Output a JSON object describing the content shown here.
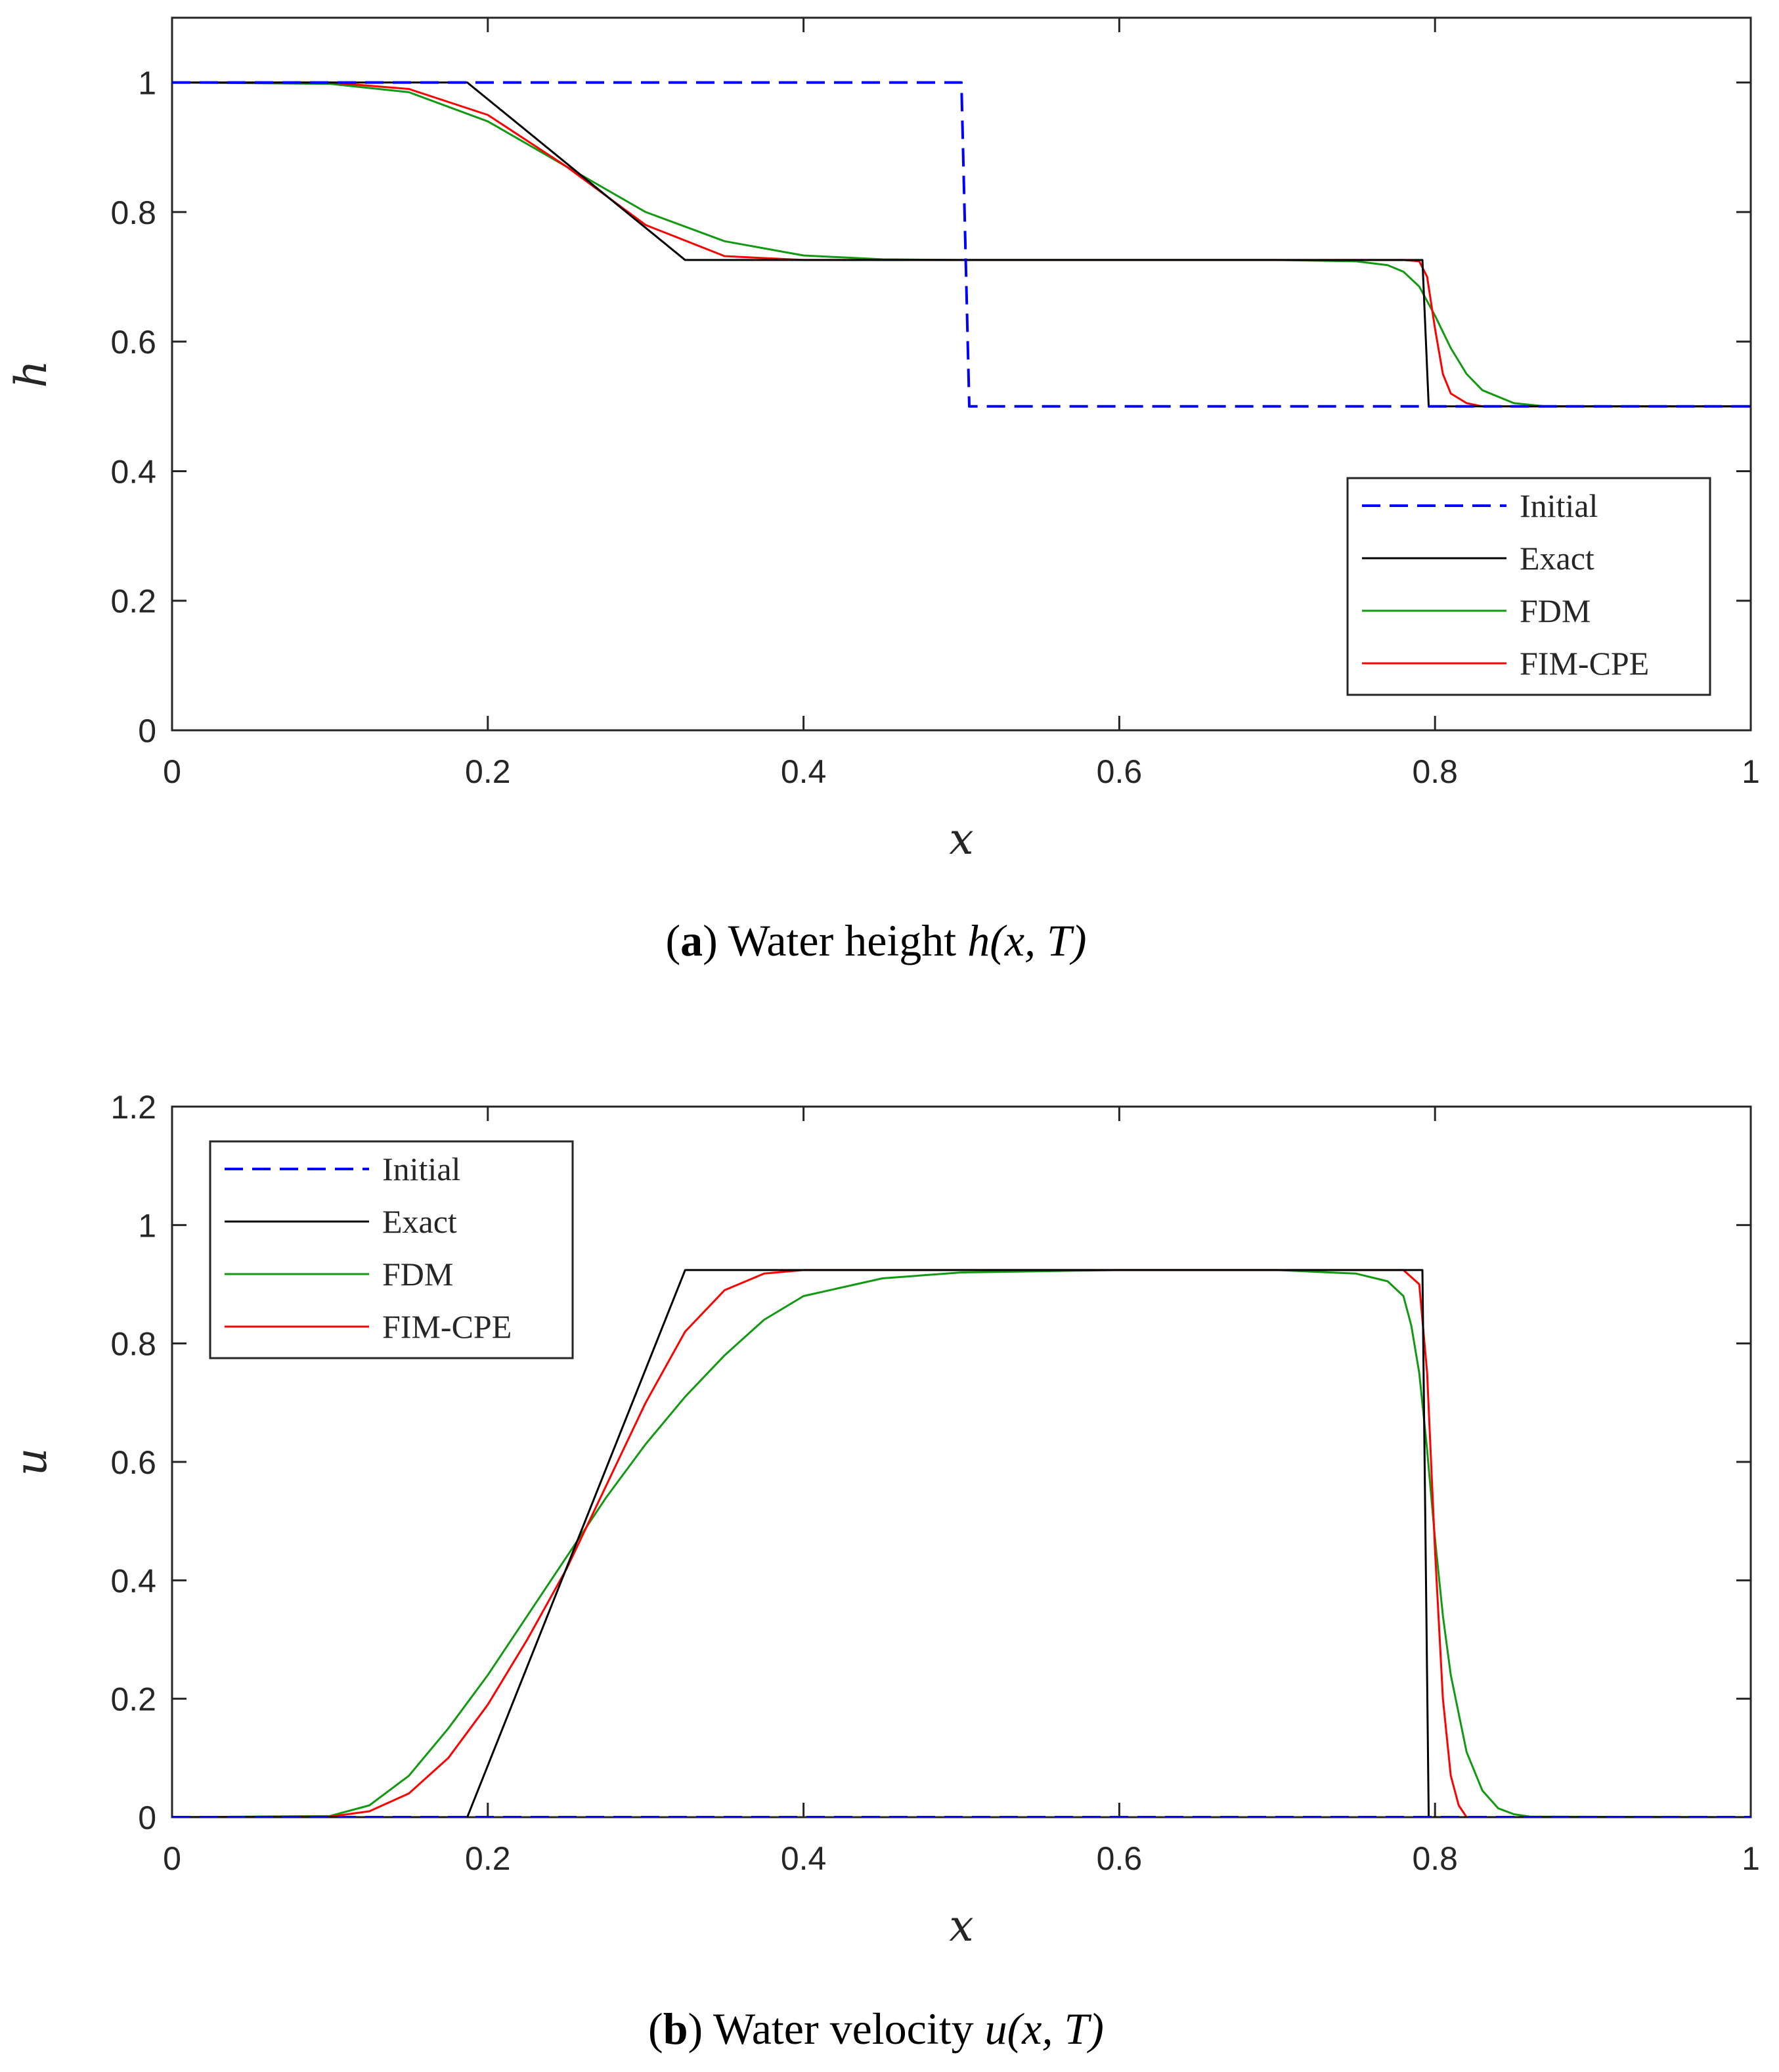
{
  "colors": {
    "initial": "#0000ff",
    "exact": "#000000",
    "fdm": "#119911",
    "fim_cpe": "#ff0000",
    "axis": "#262626"
  },
  "chart_data": [
    {
      "type": "line",
      "title": "",
      "xlabel": "x",
      "ylabel": "h",
      "xlim": [
        0,
        1
      ],
      "ylim": [
        0,
        1.1
      ],
      "x_ticks": [
        0,
        0.2,
        0.4,
        0.6,
        0.8,
        1
      ],
      "x_tick_labels": [
        "0",
        "0.2",
        "0.4",
        "0.6",
        "0.8",
        "1"
      ],
      "y_ticks": [
        0,
        0.2,
        0.4,
        0.6,
        0.8,
        1
      ],
      "y_tick_labels": [
        "0",
        "0.2",
        "0.4",
        "0.6",
        "0.8",
        "1"
      ],
      "legend_position": "lower-right",
      "grid": false,
      "caption": {
        "letter": "a",
        "text": "Water height",
        "math": "h(x, T)"
      },
      "series": [
        {
          "name": "Initial",
          "style": "dashed",
          "color_key": "initial",
          "x": [
            0,
            0.5,
            0.505,
            1
          ],
          "y": [
            1,
            1,
            0.5,
            0.5
          ]
        },
        {
          "name": "Exact",
          "style": "solid",
          "color_key": "exact",
          "x": [
            0,
            0.187,
            0.325,
            0.792,
            0.796,
            1
          ],
          "y": [
            1,
            1,
            0.726,
            0.726,
            0.5,
            0.5
          ]
        },
        {
          "name": "FDM",
          "style": "solid",
          "color_key": "fdm",
          "x": [
            0,
            0.1,
            0.15,
            0.2,
            0.25,
            0.3,
            0.35,
            0.4,
            0.45,
            0.5,
            0.7,
            0.75,
            0.77,
            0.78,
            0.79,
            0.8,
            0.81,
            0.82,
            0.83,
            0.85,
            0.87,
            1
          ],
          "y": [
            1,
            0.998,
            0.985,
            0.94,
            0.87,
            0.8,
            0.755,
            0.733,
            0.727,
            0.726,
            0.726,
            0.724,
            0.718,
            0.708,
            0.685,
            0.64,
            0.59,
            0.55,
            0.525,
            0.505,
            0.5,
            0.5
          ]
        },
        {
          "name": "FIM-CPE",
          "style": "solid",
          "color_key": "fim_cpe",
          "x": [
            0,
            0.1,
            0.15,
            0.2,
            0.25,
            0.3,
            0.35,
            0.4,
            0.78,
            0.79,
            0.795,
            0.8,
            0.805,
            0.81,
            0.82,
            0.83,
            1
          ],
          "y": [
            1,
            1,
            0.99,
            0.95,
            0.87,
            0.78,
            0.732,
            0.726,
            0.726,
            0.724,
            0.7,
            0.62,
            0.55,
            0.52,
            0.505,
            0.5,
            0.5
          ]
        }
      ],
      "legend": [
        "Initial",
        "Exact",
        "FDM",
        "FIM-CPE"
      ]
    },
    {
      "type": "line",
      "title": "",
      "xlabel": "x",
      "ylabel": "u",
      "xlim": [
        0,
        1
      ],
      "ylim": [
        0,
        1.2
      ],
      "x_ticks": [
        0,
        0.2,
        0.4,
        0.6,
        0.8,
        1
      ],
      "x_tick_labels": [
        "0",
        "0.2",
        "0.4",
        "0.6",
        "0.8",
        "1"
      ],
      "y_ticks": [
        0,
        0.2,
        0.4,
        0.6,
        0.8,
        1,
        1.2
      ],
      "y_tick_labels": [
        "0",
        "0.2",
        "0.4",
        "0.6",
        "0.8",
        "1",
        "1.2"
      ],
      "legend_position": "upper-left",
      "grid": false,
      "caption": {
        "letter": "b",
        "text": "Water velocity",
        "math": "u(x, T)"
      },
      "series": [
        {
          "name": "Initial",
          "style": "dashed",
          "color_key": "initial",
          "x": [
            0,
            1
          ],
          "y": [
            0,
            0
          ]
        },
        {
          "name": "Exact",
          "style": "solid",
          "color_key": "exact",
          "x": [
            0,
            0.187,
            0.325,
            0.792,
            0.796,
            1
          ],
          "y": [
            0,
            0,
            0.924,
            0.924,
            0,
            0
          ]
        },
        {
          "name": "FDM",
          "style": "solid",
          "color_key": "fdm",
          "x": [
            0,
            0.1,
            0.125,
            0.15,
            0.175,
            0.2,
            0.225,
            0.25,
            0.275,
            0.3,
            0.325,
            0.35,
            0.375,
            0.4,
            0.45,
            0.5,
            0.6,
            0.7,
            0.75,
            0.77,
            0.78,
            0.785,
            0.79,
            0.795,
            0.8,
            0.805,
            0.81,
            0.82,
            0.83,
            0.84,
            0.85,
            0.86,
            1
          ],
          "y": [
            0,
            0.002,
            0.02,
            0.07,
            0.15,
            0.24,
            0.34,
            0.44,
            0.54,
            0.63,
            0.71,
            0.78,
            0.84,
            0.88,
            0.91,
            0.92,
            0.924,
            0.924,
            0.918,
            0.905,
            0.88,
            0.83,
            0.75,
            0.62,
            0.47,
            0.34,
            0.24,
            0.11,
            0.045,
            0.015,
            0.005,
            0.001,
            0
          ]
        },
        {
          "name": "FIM-CPE",
          "style": "solid",
          "color_key": "fim_cpe",
          "x": [
            0,
            0.1,
            0.125,
            0.15,
            0.175,
            0.2,
            0.225,
            0.25,
            0.275,
            0.3,
            0.325,
            0.35,
            0.375,
            0.4,
            0.78,
            0.79,
            0.795,
            0.8,
            0.805,
            0.81,
            0.815,
            0.82,
            1
          ],
          "y": [
            0,
            0.001,
            0.01,
            0.04,
            0.1,
            0.19,
            0.3,
            0.42,
            0.56,
            0.7,
            0.82,
            0.89,
            0.918,
            0.924,
            0.924,
            0.9,
            0.75,
            0.45,
            0.2,
            0.07,
            0.02,
            0,
            0
          ]
        }
      ],
      "legend": [
        "Initial",
        "Exact",
        "FDM",
        "FIM-CPE"
      ]
    }
  ]
}
